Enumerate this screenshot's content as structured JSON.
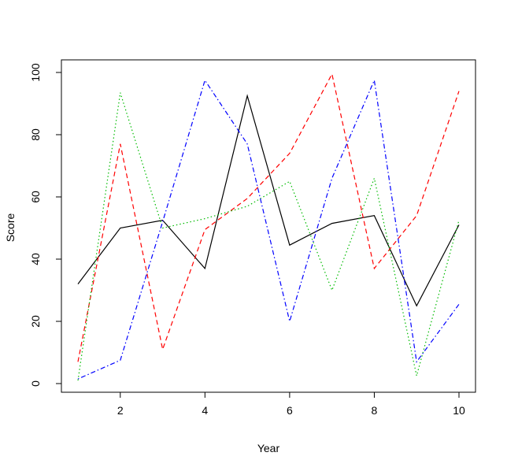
{
  "chart_data": {
    "type": "line",
    "title": "",
    "xlabel": "Year",
    "ylabel": "Score",
    "x": [
      1,
      2,
      3,
      4,
      5,
      6,
      7,
      8,
      9,
      10
    ],
    "xlim": [
      1,
      10
    ],
    "ylim": [
      0,
      100
    ],
    "x_ticks": [
      2,
      4,
      6,
      8,
      10
    ],
    "y_ticks": [
      0,
      20,
      40,
      60,
      80,
      100
    ],
    "grid": false,
    "legend": "none",
    "series": [
      {
        "color": "#000000",
        "dash": "solid",
        "values": [
          32,
          50,
          52.5,
          37,
          92.5,
          44.5,
          51.5,
          54,
          25,
          51
        ]
      },
      {
        "color": "#ff0000",
        "dash": "dashed",
        "values": [
          7,
          77,
          11,
          49.5,
          59.5,
          74,
          99.5,
          37,
          54,
          94
        ]
      },
      {
        "color": "#00bb00",
        "dash": "dotted",
        "values": [
          1,
          93.5,
          50,
          53,
          57,
          65,
          30,
          66,
          2.5,
          52.5
        ]
      },
      {
        "color": "#0000ff",
        "dash": "dotdash",
        "values": [
          1.5,
          7.5,
          52,
          97.5,
          77,
          20,
          66,
          97.5,
          7,
          25.5
        ]
      }
    ]
  }
}
